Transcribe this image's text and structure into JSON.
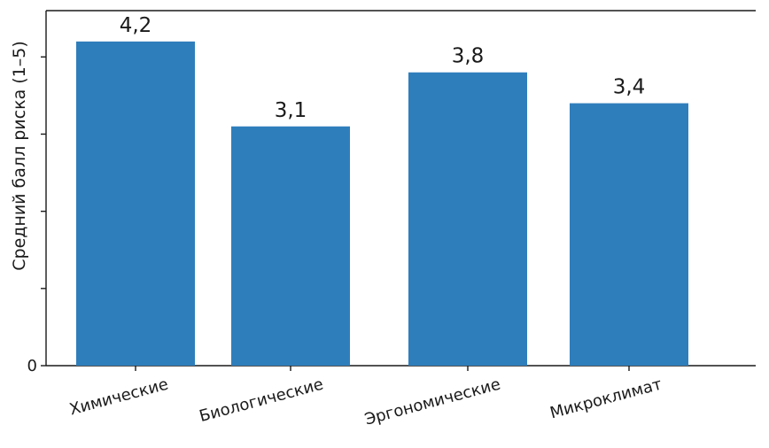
{
  "chart_data": {
    "type": "bar",
    "categories": [
      "Химические",
      "Биологические",
      "Эргономические",
      "Микроклимат"
    ],
    "values": [
      4.2,
      3.1,
      3.8,
      3.4
    ],
    "data_labels": [
      "4,2",
      "3,1",
      "3,8",
      "3,4"
    ],
    "title": "",
    "xlabel": "",
    "ylabel": "Средний балл риска (1–5)",
    "ylim": [
      0,
      4.6
    ],
    "y_tick_values": [
      0,
      1,
      2,
      3,
      4
    ],
    "y_tick_labels": [
      "0",
      "",
      "",
      "",
      ""
    ],
    "grid": false,
    "colors": {
      "bar": "#2f7ebc",
      "axis": "#1a1a1a"
    }
  }
}
